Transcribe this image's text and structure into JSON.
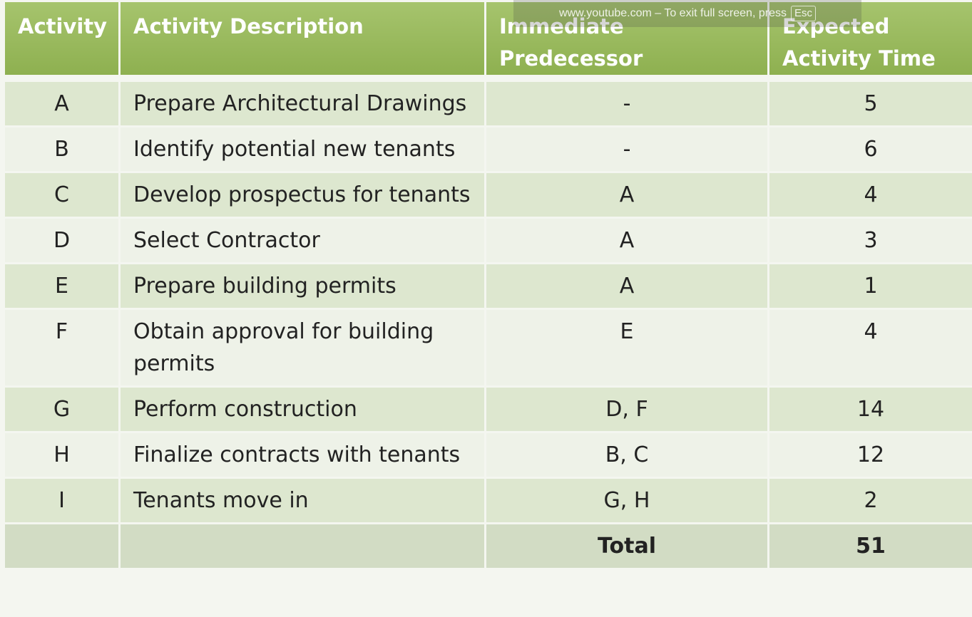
{
  "table": {
    "headers": {
      "activity": "Activity",
      "description": "Activity Description",
      "predecessor_line1": "Immediate",
      "predecessor_line2": "Predecessor",
      "time_line1": "Expected",
      "time_line2": "Activity Time"
    },
    "rows": [
      {
        "activity": "A",
        "description": "Prepare Architectural Drawings",
        "predecessor": "-",
        "time": "5"
      },
      {
        "activity": "B",
        "description": "Identify potential new tenants",
        "predecessor": "-",
        "time": "6"
      },
      {
        "activity": "C",
        "description": "Develop prospectus for tenants",
        "predecessor": "A",
        "time": "4"
      },
      {
        "activity": "D",
        "description": "Select Contractor",
        "predecessor": "A",
        "time": "3"
      },
      {
        "activity": "E",
        "description": "Prepare building permits",
        "predecessor": "A",
        "time": "1"
      },
      {
        "activity": "F",
        "description": "Obtain approval for building permits",
        "predecessor": "E",
        "time": "4"
      },
      {
        "activity": "G",
        "description": "Perform construction",
        "predecessor": "D, F",
        "time": "14"
      },
      {
        "activity": "H",
        "description": "Finalize contracts with tenants",
        "predecessor": "B, C",
        "time": "12"
      },
      {
        "activity": "I",
        "description": "Tenants move in",
        "predecessor": "G, H",
        "time": "2"
      }
    ],
    "total": {
      "label": "Total",
      "value": "51"
    }
  },
  "fullscreen_notice": {
    "text": "www.youtube.com – To exit full screen, press",
    "key": "Esc"
  },
  "colors": {
    "header_green": "#9bbb59",
    "row_odd": "#dde7cf",
    "row_even": "#eef2e8"
  }
}
